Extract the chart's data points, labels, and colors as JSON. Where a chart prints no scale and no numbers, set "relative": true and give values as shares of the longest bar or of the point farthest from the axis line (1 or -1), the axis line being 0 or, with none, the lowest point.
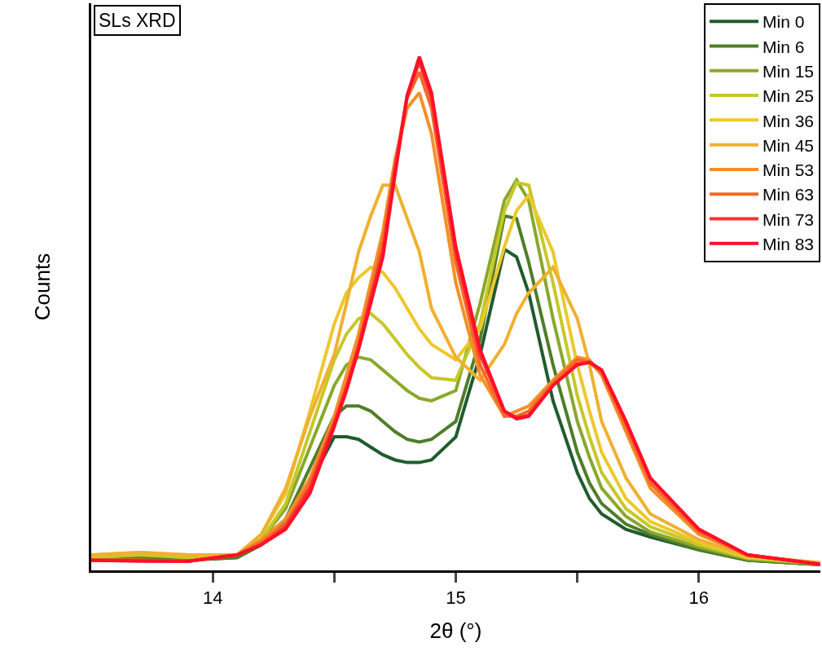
{
  "chart_data": {
    "type": "line",
    "title": "SLs XRD",
    "xlabel": "2θ (°)",
    "ylabel": "Counts",
    "relative": true,
    "x": [
      13.5,
      13.7,
      13.9,
      14.1,
      14.2,
      14.3,
      14.4,
      14.5,
      14.55,
      14.6,
      14.65,
      14.7,
      14.75,
      14.8,
      14.85,
      14.9,
      15.0,
      15.1,
      15.2,
      15.25,
      15.3,
      15.4,
      15.5,
      15.55,
      15.6,
      15.7,
      15.8,
      16.0,
      16.2,
      16.5
    ],
    "xlim": [
      13.5,
      16.5
    ],
    "xticks": [
      14,
      {
        "value": 14.5,
        "label": null
      },
      15,
      {
        "value": 15.5,
        "label": null
      },
      16
    ],
    "legend": "top right",
    "marker": "none",
    "line_style": "solid",
    "series": [
      {
        "name": "Min 0",
        "color": "#1f5c2e",
        "values": [
          0.022,
          0.025,
          0.02,
          0.025,
          0.05,
          0.09,
          0.17,
          0.26,
          0.26,
          0.255,
          0.24,
          0.225,
          0.215,
          0.21,
          0.21,
          0.215,
          0.26,
          0.42,
          0.625,
          0.61,
          0.54,
          0.33,
          0.19,
          0.14,
          0.11,
          0.08,
          0.065,
          0.04,
          0.02,
          0.011
        ]
      },
      {
        "name": "Min 6",
        "color": "#4f7d2a",
        "values": [
          0.022,
          0.025,
          0.02,
          0.025,
          0.05,
          0.1,
          0.2,
          0.3,
          0.32,
          0.32,
          0.31,
          0.29,
          0.27,
          0.255,
          0.25,
          0.255,
          0.29,
          0.45,
          0.69,
          0.685,
          0.6,
          0.4,
          0.23,
          0.17,
          0.13,
          0.09,
          0.07,
          0.04,
          0.02,
          0.011
        ]
      },
      {
        "name": "Min 15",
        "color": "#8aa82c",
        "values": [
          0.025,
          0.03,
          0.025,
          0.03,
          0.06,
          0.12,
          0.24,
          0.36,
          0.4,
          0.415,
          0.41,
          0.39,
          0.37,
          0.35,
          0.335,
          0.33,
          0.35,
          0.52,
          0.72,
          0.76,
          0.72,
          0.49,
          0.29,
          0.22,
          0.16,
          0.105,
          0.075,
          0.045,
          0.022,
          0.012
        ]
      },
      {
        "name": "Min 25",
        "color": "#c5c828",
        "values": [
          0.025,
          0.03,
          0.025,
          0.03,
          0.06,
          0.13,
          0.27,
          0.41,
          0.46,
          0.49,
          0.5,
          0.48,
          0.45,
          0.42,
          0.395,
          0.375,
          0.37,
          0.48,
          0.7,
          0.755,
          0.75,
          0.56,
          0.34,
          0.26,
          0.19,
          0.12,
          0.085,
          0.05,
          0.024,
          0.013
        ]
      },
      {
        "name": "Min 36",
        "color": "#edc82b",
        "values": [
          0.03,
          0.035,
          0.03,
          0.03,
          0.07,
          0.15,
          0.31,
          0.48,
          0.54,
          0.57,
          0.59,
          0.58,
          0.55,
          0.51,
          0.47,
          0.44,
          0.41,
          0.47,
          0.63,
          0.7,
          0.73,
          0.62,
          0.4,
          0.31,
          0.23,
          0.14,
          0.095,
          0.055,
          0.026,
          0.014
        ]
      },
      {
        "name": "Min 45",
        "color": "#f0b030",
        "values": [
          0.03,
          0.035,
          0.03,
          0.03,
          0.07,
          0.16,
          0.3,
          0.42,
          0.52,
          0.62,
          0.69,
          0.75,
          0.75,
          0.685,
          0.62,
          0.51,
          0.415,
          0.37,
          0.44,
          0.5,
          0.54,
          0.59,
          0.49,
          0.4,
          0.29,
          0.18,
          0.11,
          0.06,
          0.028,
          0.015
        ]
      },
      {
        "name": "Min 53",
        "color": "#f39028",
        "values": [
          0.02,
          0.02,
          0.018,
          0.03,
          0.06,
          0.1,
          0.18,
          0.3,
          0.38,
          0.46,
          0.56,
          0.66,
          0.8,
          0.9,
          0.93,
          0.85,
          0.56,
          0.38,
          0.3,
          0.31,
          0.32,
          0.37,
          0.415,
          0.41,
          0.38,
          0.27,
          0.16,
          0.07,
          0.03,
          0.012
        ]
      },
      {
        "name": "Min 63",
        "color": "#f76828",
        "values": [
          0.02,
          0.02,
          0.018,
          0.03,
          0.055,
          0.09,
          0.17,
          0.29,
          0.36,
          0.44,
          0.54,
          0.64,
          0.79,
          0.92,
          0.97,
          0.9,
          0.6,
          0.4,
          0.3,
          0.3,
          0.31,
          0.365,
          0.41,
          0.405,
          0.385,
          0.28,
          0.17,
          0.075,
          0.03,
          0.012
        ]
      },
      {
        "name": "Min 73",
        "color": "#fa3030",
        "values": [
          0.02,
          0.019,
          0.018,
          0.03,
          0.05,
          0.085,
          0.16,
          0.285,
          0.355,
          0.435,
          0.53,
          0.62,
          0.78,
          0.925,
          0.99,
          0.92,
          0.62,
          0.42,
          0.31,
          0.297,
          0.302,
          0.36,
          0.402,
          0.405,
          0.39,
          0.29,
          0.18,
          0.08,
          0.03,
          0.012
        ]
      },
      {
        "name": "Min 83",
        "color": "#ff1028",
        "values": [
          0.02,
          0.018,
          0.018,
          0.03,
          0.05,
          0.08,
          0.15,
          0.28,
          0.35,
          0.43,
          0.52,
          0.61,
          0.77,
          0.925,
          1.0,
          0.93,
          0.63,
          0.43,
          0.31,
          0.295,
          0.3,
          0.36,
          0.4,
          0.405,
          0.39,
          0.29,
          0.18,
          0.08,
          0.03,
          0.012
        ]
      }
    ]
  }
}
